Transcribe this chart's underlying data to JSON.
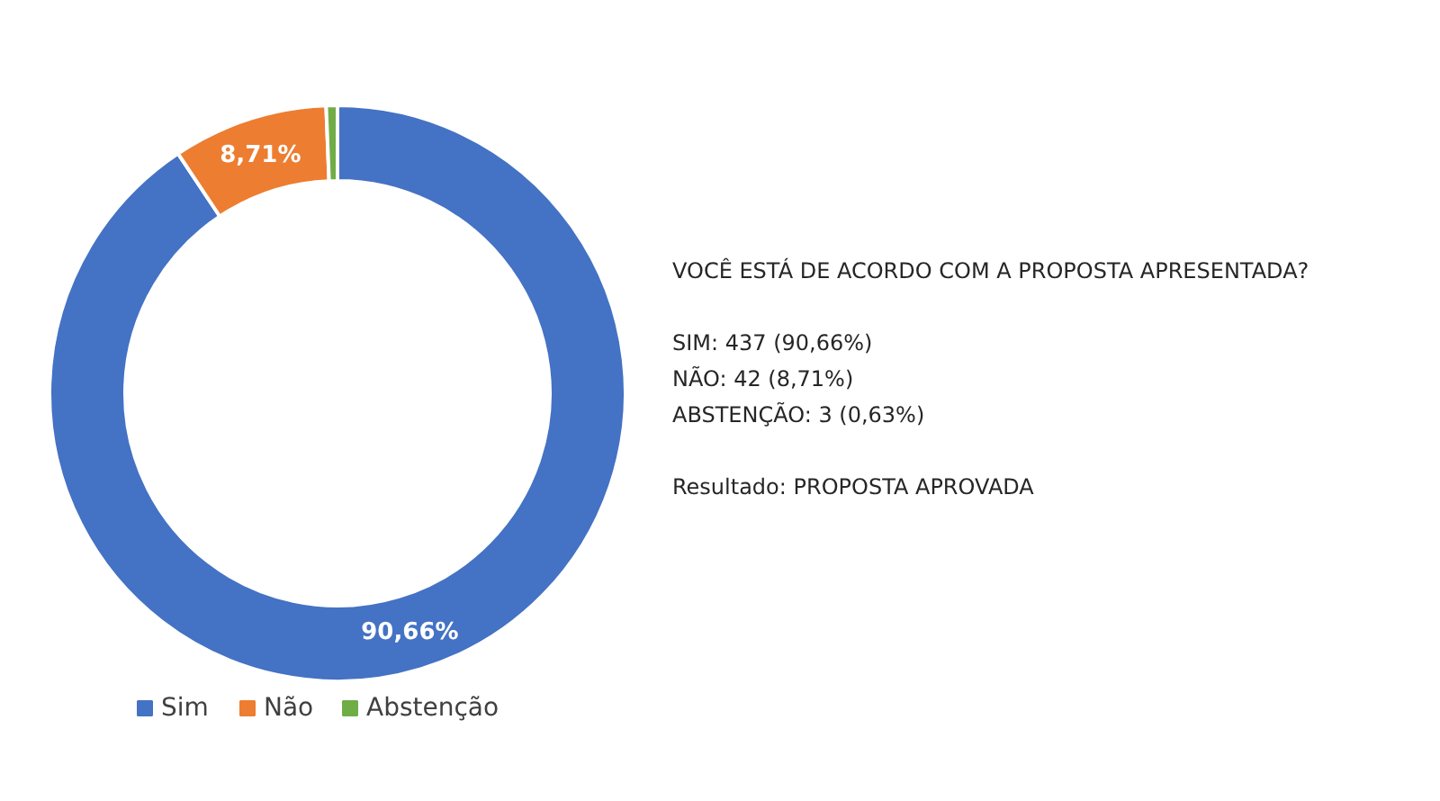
{
  "chart_data": {
    "type": "donut",
    "categories": [
      "Sim",
      "Não",
      "Abstenção"
    ],
    "values": [
      90.66,
      8.71,
      0.63
    ],
    "colors": [
      "#4472c4",
      "#ed7d31",
      "#70ad47"
    ],
    "value_labels": [
      "90,66%",
      "8,71%",
      null
    ],
    "legend": "bottom",
    "annotations": [
      "VOCÊ ESTÁ DE ACORDO COM A PROPOSTA APRESENTADA?",
      "SIM: 437 (90,66%)",
      "NÃO: 42 (8,71%)",
      "ABSTENÇÃO: 3 (0,63%)",
      "Resultado: PROPOSTA APROVADA"
    ]
  }
}
